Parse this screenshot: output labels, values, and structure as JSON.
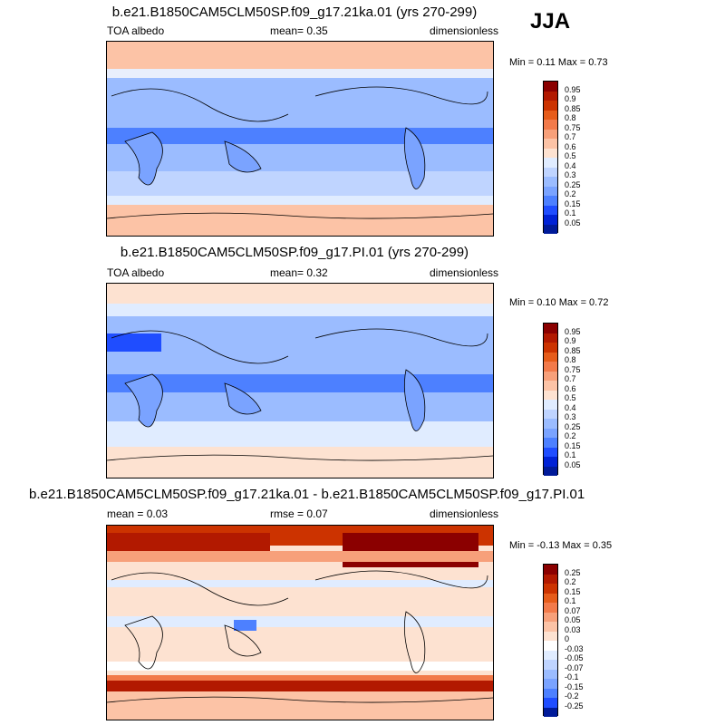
{
  "season": "JJA",
  "panels": [
    {
      "title": "b.e21.B1850CAM5CLM50SP.f09_g17.21ka.01 (yrs 270-299)",
      "left_label": "TOA albedo",
      "center_label": "mean=   0.35",
      "right_label": "dimensionless",
      "minmax": "Min =   0.11 Max =   0.73",
      "colorbar": {
        "ticks": [
          "0.95",
          "0.9",
          "0.85",
          "0.8",
          "0.75",
          "0.7",
          "0.6",
          "0.5",
          "0.4",
          "0.3",
          "0.25",
          "0.2",
          "0.15",
          "0.1",
          "0.05"
        ],
        "colors": [
          "#8b0000",
          "#b21900",
          "#cc3300",
          "#e65c1a",
          "#f27a4a",
          "#f7a07a",
          "#fcc3a6",
          "#fde2d1",
          "#e0ecff",
          "#bfd4ff",
          "#9bbcff",
          "#7aa3ff",
          "#4d80ff",
          "#1f4dff",
          "#0022d6",
          "#001a99"
        ]
      }
    },
    {
      "title": "b.e21.B1850CAM5CLM50SP.f09_g17.PI.01 (yrs 270-299)",
      "left_label": "TOA albedo",
      "center_label": "mean=   0.32",
      "right_label": "dimensionless",
      "minmax": "Min =   0.10 Max =   0.72",
      "colorbar": {
        "ticks": [
          "0.95",
          "0.9",
          "0.85",
          "0.8",
          "0.75",
          "0.7",
          "0.6",
          "0.5",
          "0.4",
          "0.3",
          "0.25",
          "0.2",
          "0.15",
          "0.1",
          "0.05"
        ],
        "colors": [
          "#8b0000",
          "#b21900",
          "#cc3300",
          "#e65c1a",
          "#f27a4a",
          "#f7a07a",
          "#fcc3a6",
          "#fde2d1",
          "#e0ecff",
          "#bfd4ff",
          "#9bbcff",
          "#7aa3ff",
          "#4d80ff",
          "#1f4dff",
          "#0022d6",
          "#001a99"
        ]
      }
    },
    {
      "title": "b.e21.B1850CAM5CLM50SP.f09_g17.21ka.01 - b.e21.B1850CAM5CLM50SP.f09_g17.PI.01",
      "left_label": "mean =   0.03",
      "center_label": "rmse =   0.07",
      "right_label": "dimensionless",
      "minmax": "Min =  -0.13 Max =   0.35",
      "colorbar": {
        "ticks": [
          "0.25",
          "0.2",
          "0.15",
          "0.1",
          "0.07",
          "0.05",
          "0.03",
          "0",
          "-0.03",
          "-0.05",
          "-0.07",
          "-0.1",
          "-0.15",
          "-0.2",
          "-0.25"
        ],
        "colors": [
          "#8b0000",
          "#b21900",
          "#cc3300",
          "#e65c1a",
          "#f27a4a",
          "#f7a07a",
          "#fcc3a6",
          "#fde2d1",
          "#ffffff",
          "#e0ecff",
          "#bfd4ff",
          "#9bbcff",
          "#7aa3ff",
          "#4d80ff",
          "#1f4dff",
          "#001a99"
        ]
      }
    }
  ]
}
